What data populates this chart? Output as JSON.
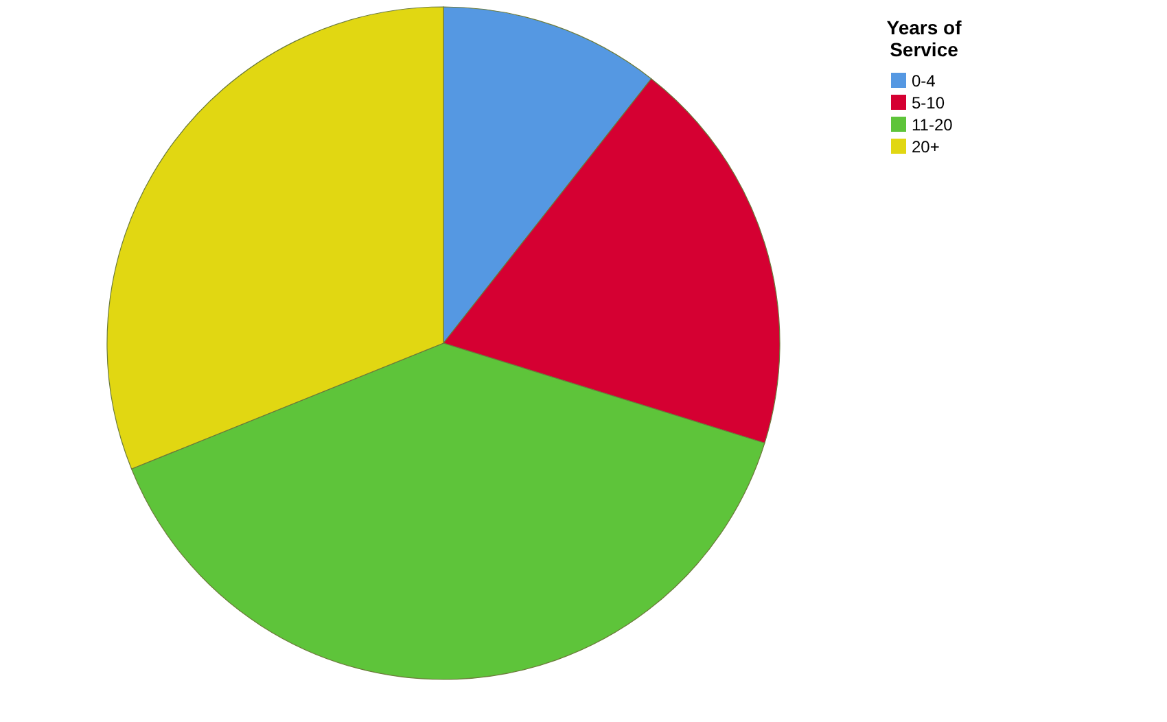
{
  "chart_data": {
    "type": "pie",
    "legend_title": "Years of Service",
    "categories": [
      "0-4",
      "5-10",
      "11-20",
      "20+"
    ],
    "values": [
      10.6,
      19.2,
      39.1,
      31.1
    ],
    "colors": [
      "#5598e2",
      "#d50032",
      "#5ec43a",
      "#e1d712"
    ],
    "legend": "top right"
  }
}
